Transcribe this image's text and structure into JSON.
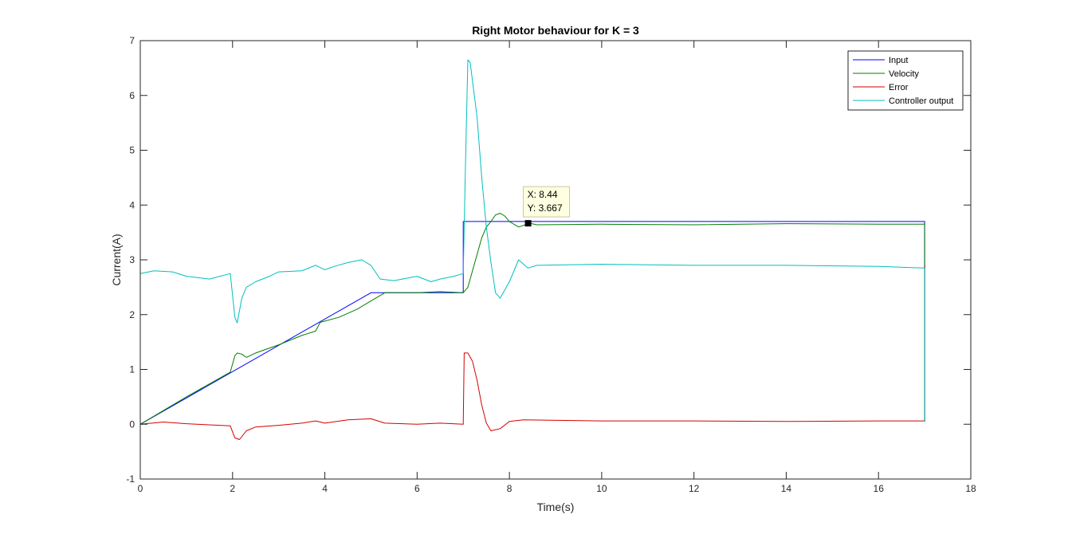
{
  "chart_data": {
    "type": "line",
    "title": "Right Motor behaviour for K = 3",
    "xlabel": "Time(s)",
    "ylabel": "Current(A)",
    "xlim": [
      0,
      18
    ],
    "ylim": [
      -1,
      7
    ],
    "xticks": [
      0,
      2,
      4,
      6,
      8,
      10,
      12,
      14,
      16,
      18
    ],
    "yticks": [
      -1,
      0,
      1,
      2,
      3,
      4,
      5,
      6,
      7
    ],
    "grid": false,
    "legend_position": "top-right",
    "series": [
      {
        "name": "Input",
        "color": "#0000ff",
        "x": [
          0,
          5,
          7,
          7,
          17,
          17
        ],
        "y": [
          0,
          2.4,
          2.4,
          3.7,
          3.7,
          0.05
        ]
      },
      {
        "name": "Velocity",
        "color": "#007f00",
        "x": [
          0,
          1.0,
          1.95,
          2.0,
          2.05,
          2.1,
          2.2,
          2.3,
          2.5,
          3.0,
          3.5,
          3.8,
          3.9,
          4.3,
          4.7,
          5.0,
          5.3,
          6.0,
          6.5,
          7.0,
          7.1,
          7.2,
          7.3,
          7.4,
          7.5,
          7.6,
          7.7,
          7.8,
          7.9,
          8.0,
          8.2,
          8.44,
          8.6,
          10,
          12,
          14,
          16,
          17,
          17
        ],
        "y": [
          0,
          0.5,
          0.95,
          1.1,
          1.25,
          1.3,
          1.28,
          1.22,
          1.3,
          1.45,
          1.62,
          1.7,
          1.86,
          1.95,
          2.1,
          2.25,
          2.4,
          2.4,
          2.42,
          2.4,
          2.5,
          2.8,
          3.1,
          3.4,
          3.6,
          3.7,
          3.82,
          3.85,
          3.8,
          3.7,
          3.6,
          3.667,
          3.64,
          3.65,
          3.64,
          3.66,
          3.65,
          3.65,
          0.05
        ]
      },
      {
        "name": "Error",
        "color": "#d40000",
        "x": [
          0,
          0.5,
          1.0,
          1.95,
          2.05,
          2.15,
          2.3,
          2.5,
          3.0,
          3.5,
          3.8,
          4.0,
          4.5,
          5.0,
          5.3,
          6.0,
          6.5,
          7.0,
          7.02,
          7.1,
          7.2,
          7.3,
          7.4,
          7.5,
          7.6,
          7.8,
          8.0,
          8.3,
          10,
          12,
          14,
          16,
          17,
          17
        ],
        "y": [
          0,
          0.04,
          0.01,
          -0.03,
          -0.25,
          -0.28,
          -0.12,
          -0.05,
          -0.02,
          0.02,
          0.06,
          0.02,
          0.08,
          0.1,
          0.02,
          0.0,
          0.02,
          0.0,
          1.3,
          1.3,
          1.15,
          0.8,
          0.35,
          0.02,
          -0.12,
          -0.08,
          0.05,
          0.08,
          0.06,
          0.06,
          0.05,
          0.06,
          0.06,
          2.9
        ]
      },
      {
        "name": "Controller output",
        "color": "#00bfbf",
        "x": [
          0,
          0.3,
          0.7,
          1.0,
          1.5,
          1.95,
          2.05,
          2.1,
          2.2,
          2.3,
          2.5,
          2.8,
          3.0,
          3.5,
          3.8,
          4.0,
          4.2,
          4.5,
          4.8,
          5.0,
          5.2,
          5.5,
          6.0,
          6.3,
          6.5,
          6.8,
          7.0,
          7.05,
          7.1,
          7.15,
          7.3,
          7.4,
          7.5,
          7.6,
          7.7,
          7.8,
          8.0,
          8.2,
          8.4,
          8.6,
          10,
          12,
          14,
          16,
          17,
          17
        ],
        "y": [
          2.75,
          2.8,
          2.78,
          2.7,
          2.65,
          2.75,
          1.95,
          1.85,
          2.3,
          2.5,
          2.6,
          2.7,
          2.78,
          2.8,
          2.9,
          2.82,
          2.88,
          2.95,
          3.0,
          2.9,
          2.65,
          2.62,
          2.7,
          2.6,
          2.65,
          2.7,
          2.75,
          4.8,
          6.65,
          6.6,
          5.6,
          4.5,
          3.6,
          2.95,
          2.4,
          2.3,
          2.6,
          3.0,
          2.85,
          2.9,
          2.92,
          2.9,
          2.9,
          2.88,
          2.85,
          0.05
        ]
      }
    ],
    "annotations": [
      {
        "text_x": "X: 8.44",
        "text_y": "Y: 3.667",
        "x": 8.44,
        "y": 3.667
      }
    ]
  }
}
